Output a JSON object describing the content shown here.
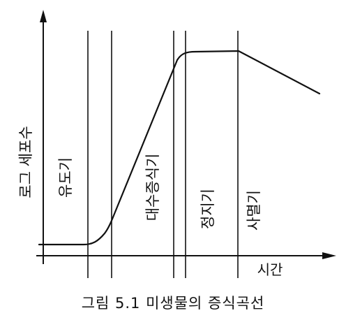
{
  "figure": {
    "caption": "그림 5.1 미생물의 증식곡선",
    "y_axis_label": "로그 세포수",
    "x_axis_label": "시간",
    "phases": [
      {
        "label": "유도기"
      },
      {
        "label": "대수증식기"
      },
      {
        "label": "정지기"
      },
      {
        "label": "사멸기"
      }
    ]
  }
}
